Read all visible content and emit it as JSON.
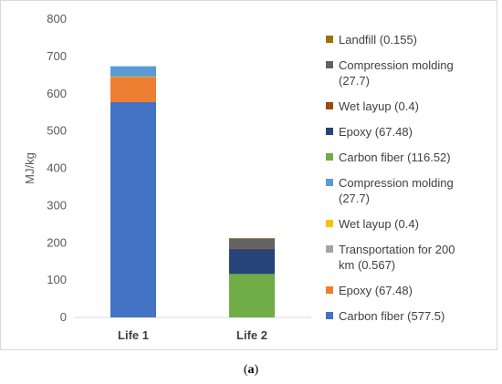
{
  "chart_data": {
    "type": "bar",
    "stacked": true,
    "title": "",
    "xlabel": "",
    "ylabel": "MJ/kg",
    "ylim": [
      0,
      800
    ],
    "yticks": [
      0,
      100,
      200,
      300,
      400,
      500,
      600,
      700,
      800
    ],
    "grid": false,
    "legend_placement": "right",
    "categories": [
      "Life 1",
      "Life 2"
    ],
    "series": [
      {
        "name": "Carbon fiber (577.5)",
        "color": "#4472C4",
        "values": [
          577.5,
          0
        ]
      },
      {
        "name": "Epoxy (67.48)",
        "color": "#ED7D31",
        "values": [
          67.48,
          0
        ]
      },
      {
        "name": "Transportation for 200 km (0.567)",
        "color": "#A5A5A5",
        "values": [
          0.567,
          0
        ]
      },
      {
        "name": "Wet layup (0.4)",
        "color": "#FFC000",
        "values": [
          0.4,
          0
        ]
      },
      {
        "name": "Compression molding (27.7)",
        "color": "#5B9BD5",
        "values": [
          27.7,
          0
        ]
      },
      {
        "name": "Carbon fiber (116.52)",
        "color": "#70AD47",
        "values": [
          0,
          116.52
        ]
      },
      {
        "name": "Epoxy (67.48)",
        "color": "#264478",
        "values": [
          0,
          67.48
        ]
      },
      {
        "name": "Wet layup (0.4)",
        "color": "#9E480E",
        "values": [
          0,
          0.4
        ]
      },
      {
        "name": "Compression molding (27.7)",
        "color": "#636363",
        "values": [
          0,
          27.7
        ]
      },
      {
        "name": "Landfill (0.155)",
        "color": "#997300",
        "values": [
          0,
          0.155
        ]
      }
    ]
  },
  "caption": {
    "open": "(",
    "letter": "a",
    "close": ")"
  }
}
